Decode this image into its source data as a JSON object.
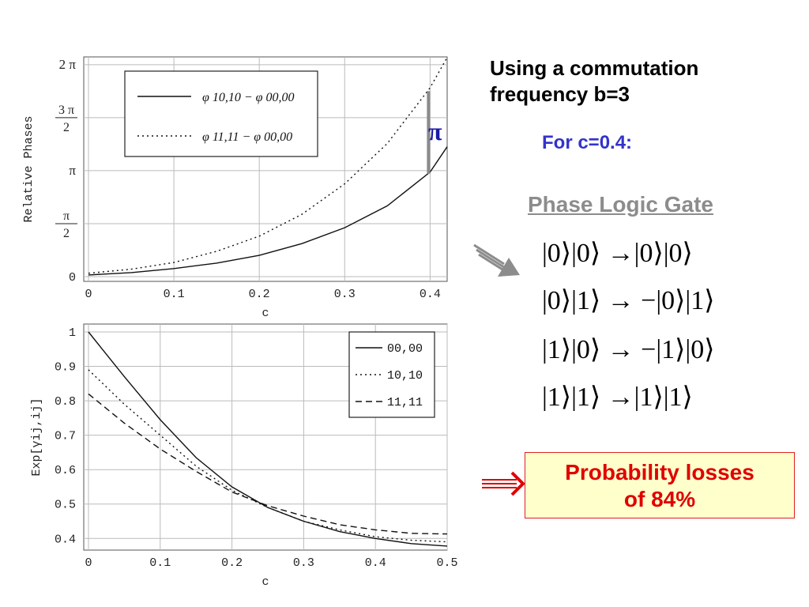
{
  "heading": {
    "line1": "Using a commutation",
    "line2": "frequency b=3"
  },
  "for_c": "For c=0.4:",
  "gate_title": "Phase Logic Gate",
  "equations": [
    "|0⟩|0⟩ →|0⟩|0⟩",
    "|0⟩|1⟩ → −|0⟩|1⟩",
    "|1⟩|0⟩ → −|1⟩|0⟩",
    "|1⟩|1⟩ →|1⟩|1⟩"
  ],
  "probability": {
    "line1": "Probability losses",
    "line2": "of 84%"
  },
  "pi_annotation": "π",
  "colors": {
    "accent_blue": "#3333cc",
    "red": "#e00000",
    "box_fill": "#ffffcc",
    "gray_arrow": "#8c8c8c"
  },
  "chart_data": [
    {
      "type": "line",
      "xlabel": "c",
      "ylabel": "Relative Phases",
      "xlim": [
        0,
        0.42
      ],
      "ylim": [
        0,
        6.28
      ],
      "x_ticks": [
        "0",
        "0.1",
        "0.2",
        "0.3",
        "0.4"
      ],
      "y_ticks": [
        "0",
        "π/2",
        "π",
        "3π/2",
        "2π"
      ],
      "grid": true,
      "legend_position": "top-left",
      "series": [
        {
          "name": "φ 10,10 − φ 00,00",
          "style": "solid",
          "x": [
            0,
            0.05,
            0.1,
            0.15,
            0.2,
            0.25,
            0.3,
            0.35,
            0.4,
            0.42
          ],
          "y": [
            0.05,
            0.12,
            0.24,
            0.4,
            0.63,
            0.98,
            1.45,
            2.1,
            3.1,
            3.85
          ]
        },
        {
          "name": "φ 11,11 − φ 00,00",
          "style": "dotted",
          "x": [
            0,
            0.05,
            0.1,
            0.15,
            0.2,
            0.25,
            0.3,
            0.35,
            0.4,
            0.42
          ],
          "y": [
            0.1,
            0.22,
            0.42,
            0.75,
            1.2,
            1.85,
            2.75,
            3.95,
            5.6,
            6.5
          ]
        }
      ],
      "annotation": {
        "x": 0.4,
        "label": "π"
      }
    },
    {
      "type": "line",
      "xlabel": "c",
      "ylabel": "Exp[γij,ij]",
      "xlim": [
        0,
        0.5
      ],
      "ylim": [
        0.38,
        1.0
      ],
      "x_ticks": [
        "0",
        "0.1",
        "0.2",
        "0.3",
        "0.4",
        "0.5"
      ],
      "y_ticks": [
        "0.4",
        "0.5",
        "0.6",
        "0.7",
        "0.8",
        "0.9",
        "1"
      ],
      "grid": true,
      "legend_position": "top-right",
      "series": [
        {
          "name": "00,00",
          "style": "solid",
          "x": [
            0,
            0.05,
            0.1,
            0.15,
            0.2,
            0.25,
            0.3,
            0.35,
            0.4,
            0.45,
            0.5
          ],
          "y": [
            1.0,
            0.87,
            0.745,
            0.635,
            0.55,
            0.49,
            0.45,
            0.42,
            0.4,
            0.385,
            0.378
          ]
        },
        {
          "name": "10,10",
          "style": "dotted",
          "x": [
            0,
            0.05,
            0.1,
            0.15,
            0.2,
            0.25,
            0.3,
            0.35,
            0.4,
            0.45,
            0.5
          ],
          "y": [
            0.89,
            0.79,
            0.7,
            0.61,
            0.54,
            0.49,
            0.45,
            0.425,
            0.405,
            0.395,
            0.39
          ]
        },
        {
          "name": "11,11",
          "style": "dashed",
          "x": [
            0,
            0.05,
            0.1,
            0.15,
            0.2,
            0.25,
            0.3,
            0.35,
            0.4,
            0.45,
            0.5
          ],
          "y": [
            0.82,
            0.735,
            0.66,
            0.595,
            0.535,
            0.495,
            0.465,
            0.44,
            0.425,
            0.415,
            0.413
          ]
        }
      ]
    }
  ]
}
